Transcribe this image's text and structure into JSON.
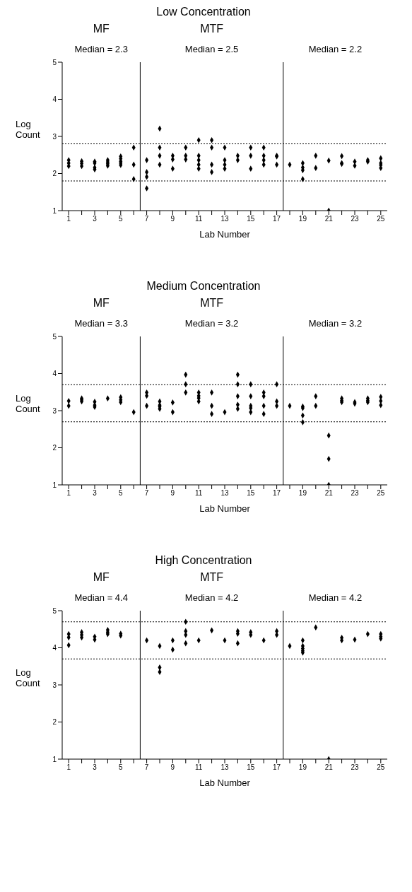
{
  "chart_data": [
    {
      "type": "scatter",
      "title": "Low Concentration",
      "xlabel": "Lab Number",
      "ylabel": "Log Count",
      "annotations": [
        "MF",
        "MTF",
        "Median = 2.3",
        "Median = 2.5",
        "Median = 2.2"
      ],
      "xlim": [
        0.5,
        25.5
      ],
      "xticks": [
        1,
        {
          "value": 2,
          "label": null
        },
        3,
        {
          "value": 4,
          "label": null
        },
        5,
        {
          "value": 6,
          "label": null
        },
        7,
        {
          "value": 8,
          "label": null
        },
        9,
        {
          "value": 10,
          "label": null
        },
        11,
        {
          "value": 12,
          "label": null
        },
        13,
        {
          "value": 14,
          "label": null
        },
        15,
        {
          "value": 16,
          "label": null
        },
        17,
        {
          "value": 18,
          "label": null
        },
        19,
        {
          "value": 20,
          "label": null
        },
        21,
        {
          "value": 22,
          "label": null
        },
        23,
        {
          "value": 24,
          "label": null
        },
        25
      ],
      "ylim": [
        1,
        5
      ],
      "yticks": [
        1,
        2,
        3,
        4,
        5
      ],
      "grid": false,
      "legend": false,
      "marker": "diamond",
      "ref_lines": [
        {
          "axis": "x",
          "value": 6.5,
          "line_style": "solid"
        },
        {
          "axis": "x",
          "value": 17.5,
          "line_style": "solid"
        },
        {
          "axis": "y",
          "value": 2.8,
          "line_style": "dotted"
        },
        {
          "axis": "y",
          "value": 1.8,
          "line_style": "dotted"
        }
      ],
      "series": [
        {
          "color": "#000000",
          "x": [
            1,
            1,
            1,
            2,
            2,
            2,
            3,
            3,
            3,
            3,
            4,
            4,
            4,
            4,
            5,
            5,
            5,
            5,
            5,
            6,
            6,
            6,
            7,
            7,
            7,
            7,
            8,
            8,
            8,
            8,
            9,
            9,
            9,
            10,
            10,
            10,
            11,
            11,
            11,
            11,
            11,
            12,
            12,
            12,
            12,
            13,
            13,
            13,
            13,
            14,
            14,
            15,
            15,
            15,
            16,
            16,
            16,
            16,
            17,
            17,
            17,
            18,
            19,
            19,
            19,
            19,
            20,
            20,
            21,
            21,
            22,
            22,
            22,
            23,
            23,
            24,
            24,
            25,
            25,
            25,
            25
          ],
          "values": [
            2.36,
            2.28,
            2.2,
            2.33,
            2.27,
            2.2,
            2.32,
            2.28,
            2.16,
            2.11,
            2.36,
            2.31,
            2.26,
            2.21,
            2.46,
            2.4,
            2.33,
            2.28,
            2.23,
            2.7,
            2.24,
            1.85,
            2.36,
            2.04,
            1.91,
            1.6,
            3.21,
            2.7,
            2.48,
            2.24,
            2.48,
            2.38,
            2.13,
            2.7,
            2.48,
            2.38,
            2.9,
            2.48,
            2.36,
            2.24,
            2.13,
            2.9,
            2.7,
            2.24,
            2.04,
            2.7,
            2.36,
            2.24,
            2.13,
            2.48,
            2.36,
            2.7,
            2.48,
            2.13,
            2.7,
            2.48,
            2.36,
            2.24,
            2.48,
            2.46,
            2.24,
            2.24,
            2.28,
            2.16,
            2.09,
            1.85,
            2.48,
            2.15,
            2.35,
            1.0,
            2.47,
            2.28,
            2.26,
            2.32,
            2.21,
            2.36,
            2.32,
            2.41,
            2.28,
            2.23,
            2.15
          ]
        }
      ]
    },
    {
      "type": "scatter",
      "title": "Medium Concentration",
      "xlabel": "Lab Number",
      "ylabel": "Log Count",
      "annotations": [
        "MF",
        "MTF",
        "Median = 3.3",
        "Median = 3.2",
        "Median = 3.2"
      ],
      "xlim": [
        0.5,
        25.5
      ],
      "xticks": [
        1,
        {
          "value": 2,
          "label": null
        },
        3,
        {
          "value": 4,
          "label": null
        },
        5,
        {
          "value": 6,
          "label": null
        },
        7,
        {
          "value": 8,
          "label": null
        },
        9,
        {
          "value": 10,
          "label": null
        },
        11,
        {
          "value": 12,
          "label": null
        },
        13,
        {
          "value": 14,
          "label": null
        },
        15,
        {
          "value": 16,
          "label": null
        },
        17,
        {
          "value": 18,
          "label": null
        },
        19,
        {
          "value": 20,
          "label": null
        },
        21,
        {
          "value": 22,
          "label": null
        },
        23,
        {
          "value": 24,
          "label": null
        },
        25
      ],
      "ylim": [
        1,
        5
      ],
      "yticks": [
        1,
        2,
        3,
        4,
        5
      ],
      "grid": false,
      "legend": false,
      "marker": "diamond",
      "ref_lines": [
        {
          "axis": "x",
          "value": 6.5,
          "line_style": "solid"
        },
        {
          "axis": "x",
          "value": 17.5,
          "line_style": "solid"
        },
        {
          "axis": "y",
          "value": 3.7,
          "line_style": "dotted"
        },
        {
          "axis": "y",
          "value": 2.7,
          "line_style": "dotted"
        }
      ],
      "series": [
        {
          "color": "#000000",
          "x": [
            1,
            1,
            2,
            2,
            2,
            3,
            3,
            3,
            4,
            5,
            5,
            5,
            6,
            7,
            7,
            7,
            8,
            8,
            8,
            8,
            9,
            9,
            10,
            10,
            10,
            11,
            11,
            11,
            11,
            12,
            12,
            12,
            13,
            14,
            14,
            14,
            14,
            14,
            15,
            15,
            15,
            15,
            15,
            16,
            16,
            16,
            16,
            17,
            17,
            17,
            18,
            19,
            19,
            19,
            19,
            20,
            20,
            21,
            21,
            21,
            22,
            22,
            22,
            23,
            23,
            24,
            24,
            24,
            25,
            25,
            25
          ],
          "values": [
            3.26,
            3.13,
            3.33,
            3.29,
            3.25,
            3.24,
            3.15,
            3.1,
            3.33,
            3.36,
            3.29,
            3.23,
            2.96,
            3.49,
            3.4,
            3.13,
            3.25,
            3.15,
            3.11,
            3.05,
            3.22,
            2.96,
            3.97,
            3.71,
            3.49,
            3.49,
            3.4,
            3.34,
            3.25,
            3.49,
            3.13,
            2.91,
            2.96,
            3.97,
            3.71,
            3.39,
            3.16,
            3.05,
            3.71,
            3.39,
            3.13,
            3.07,
            2.96,
            3.49,
            3.39,
            3.13,
            2.91,
            3.71,
            3.25,
            3.13,
            3.13,
            3.11,
            3.07,
            2.87,
            2.69,
            3.39,
            3.13,
            2.33,
            1.7,
            1.0,
            3.33,
            3.27,
            3.23,
            3.23,
            3.19,
            3.33,
            3.27,
            3.23,
            3.37,
            3.26,
            3.15
          ]
        }
      ]
    },
    {
      "type": "scatter",
      "title": "High Concentration",
      "xlabel": "Lab Number",
      "ylabel": "Log Count",
      "annotations": [
        "MF",
        "MTF",
        "Median = 4.4",
        "Median = 4.2",
        "Median = 4.2"
      ],
      "xlim": [
        0.5,
        25.5
      ],
      "xticks": [
        1,
        {
          "value": 2,
          "label": null
        },
        3,
        {
          "value": 4,
          "label": null
        },
        5,
        {
          "value": 6,
          "label": null
        },
        7,
        {
          "value": 8,
          "label": null
        },
        9,
        {
          "value": 10,
          "label": null
        },
        11,
        {
          "value": 12,
          "label": null
        },
        13,
        {
          "value": 14,
          "label": null
        },
        15,
        {
          "value": 16,
          "label": null
        },
        17,
        {
          "value": 18,
          "label": null
        },
        19,
        {
          "value": 20,
          "label": null
        },
        21,
        {
          "value": 22,
          "label": null
        },
        23,
        {
          "value": 24,
          "label": null
        },
        25
      ],
      "ylim": [
        1,
        5
      ],
      "yticks": [
        1,
        2,
        3,
        4,
        5
      ],
      "grid": false,
      "legend": false,
      "marker": "diamond",
      "ref_lines": [
        {
          "axis": "x",
          "value": 6.5,
          "line_style": "solid"
        },
        {
          "axis": "x",
          "value": 17.5,
          "line_style": "solid"
        },
        {
          "axis": "y",
          "value": 4.7,
          "line_style": "dotted"
        },
        {
          "axis": "y",
          "value": 3.7,
          "line_style": "dotted"
        }
      ],
      "series": [
        {
          "color": "#000000",
          "x": [
            1,
            1,
            1,
            2,
            2,
            2,
            3,
            3,
            4,
            4,
            4,
            5,
            5,
            7,
            8,
            8,
            8,
            9,
            9,
            10,
            10,
            10,
            10,
            11,
            12,
            13,
            14,
            14,
            14,
            15,
            15,
            16,
            17,
            17,
            18,
            19,
            19,
            19,
            19,
            19,
            20,
            21,
            22,
            22,
            23,
            24,
            25,
            25,
            25
          ],
          "values": [
            4.37,
            4.28,
            4.07,
            4.42,
            4.35,
            4.28,
            4.3,
            4.22,
            4.48,
            4.42,
            4.37,
            4.38,
            4.33,
            4.2,
            4.05,
            3.47,
            3.35,
            4.2,
            3.95,
            4.7,
            4.45,
            4.35,
            4.12,
            4.2,
            4.47,
            4.2,
            4.45,
            4.38,
            4.12,
            4.42,
            4.35,
            4.2,
            4.45,
            4.35,
            4.05,
            4.2,
            4.05,
            3.98,
            3.92,
            3.87,
            4.55,
            1.0,
            4.27,
            4.2,
            4.22,
            4.37,
            4.37,
            4.3,
            4.25
          ]
        }
      ]
    }
  ]
}
